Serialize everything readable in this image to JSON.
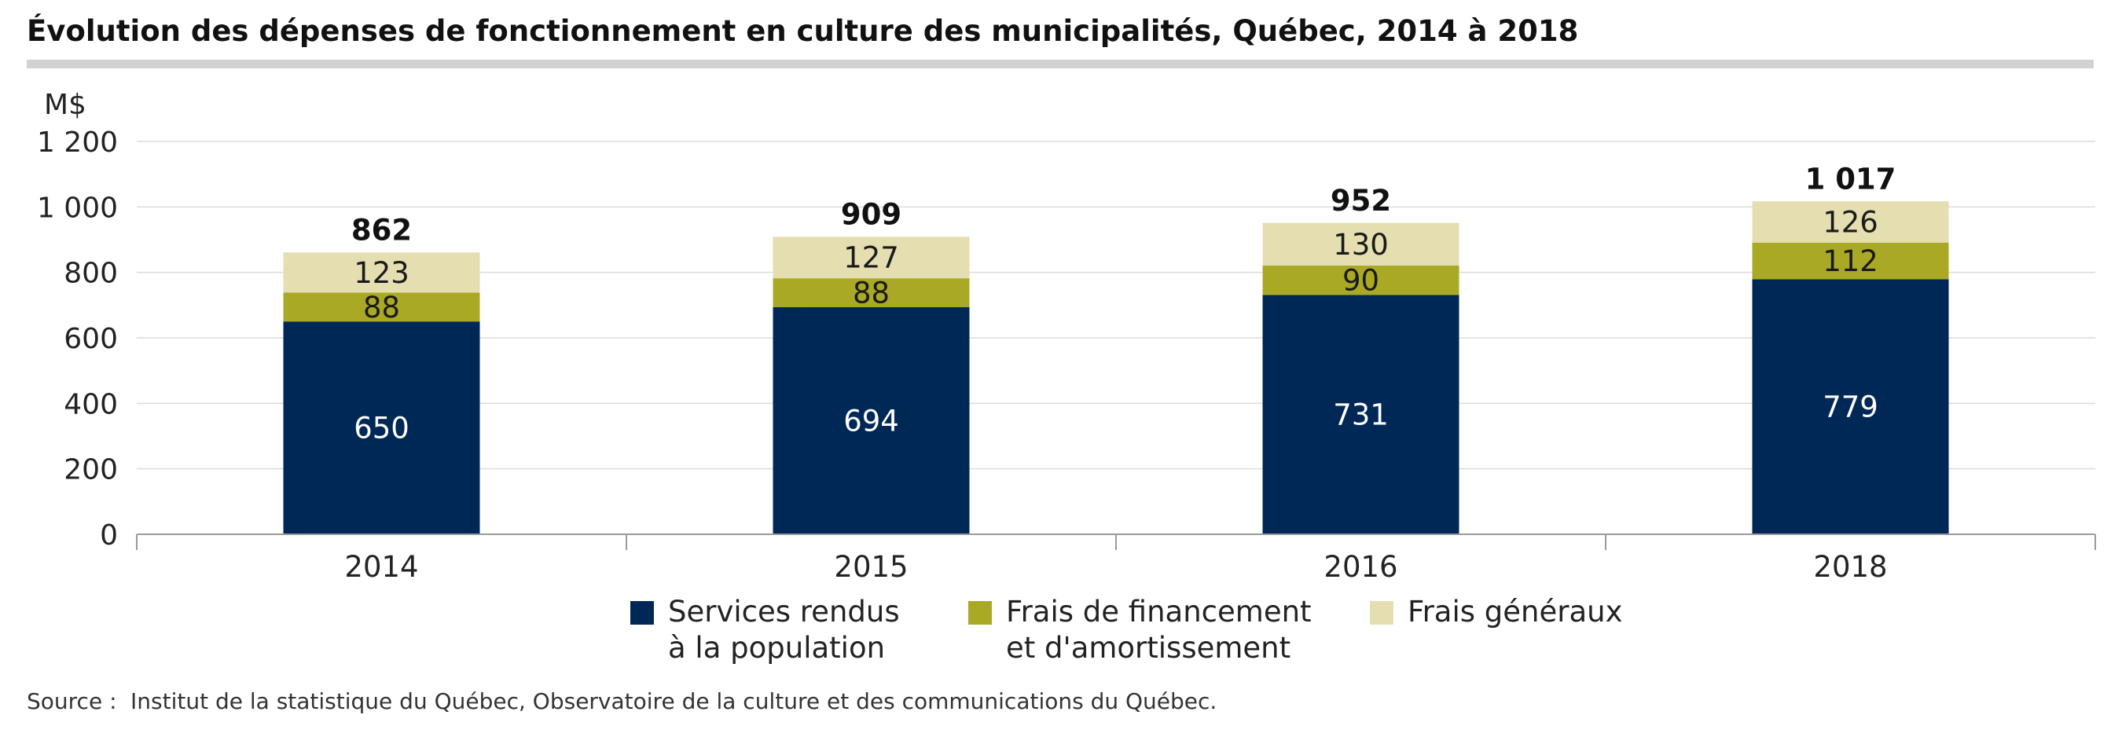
{
  "chart_data": {
    "type": "bar",
    "stacked": true,
    "title": "Évolution des dépenses de fonctionnement en culture des municipalités, Québec, 2014 à 2018",
    "ylabel": "M$",
    "ylim": [
      0,
      1200
    ],
    "yticks": [
      0,
      200,
      400,
      600,
      800,
      1000,
      1200
    ],
    "ytick_labels": [
      "0",
      "200",
      "400",
      "600",
      "800",
      "1 000",
      "1 200"
    ],
    "categories": [
      "2014",
      "2015",
      "2016",
      "2018"
    ],
    "series": [
      {
        "name": "Services rendus à la population",
        "name_lines": [
          "Services rendus",
          "à la population"
        ],
        "color": "#002856",
        "label_color": "#ffffff",
        "values": [
          650,
          694,
          731,
          779
        ]
      },
      {
        "name": "Frais de financement et d'amortissement",
        "name_lines": [
          "Frais de financement",
          "et d'amortissement"
        ],
        "color": "#a9a925",
        "label_color": "#1a1a1a",
        "values": [
          88,
          88,
          90,
          112
        ]
      },
      {
        "name": "Frais généraux",
        "name_lines": [
          "Frais généraux"
        ],
        "color": "#e4deb0",
        "label_color": "#1a1a1a",
        "values": [
          123,
          127,
          130,
          126
        ]
      }
    ],
    "totals": [
      862,
      909,
      952,
      1017
    ],
    "total_labels": [
      "862",
      "909",
      "952",
      "1 017"
    ],
    "grid": true,
    "legend_position": "bottom"
  },
  "source": {
    "prefix": "Source :",
    "text": "Institut de la statistique du Québec, Observatoire de la culture et des communications du Québec."
  }
}
